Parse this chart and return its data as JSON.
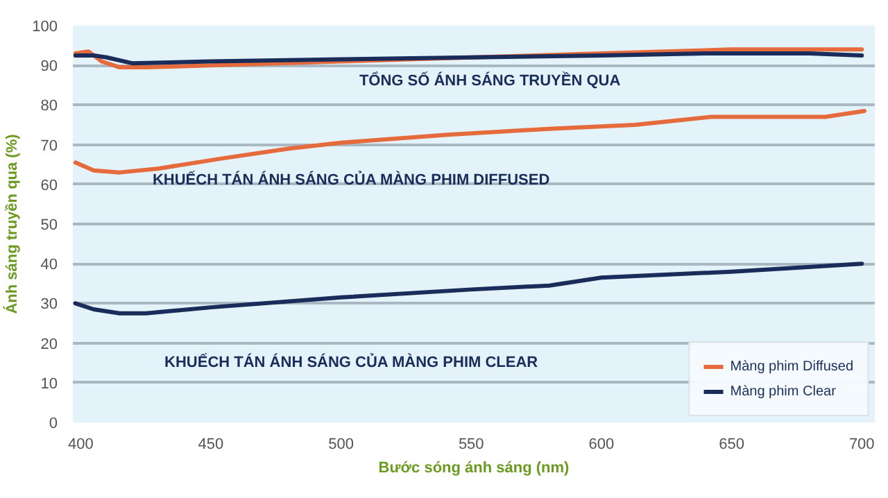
{
  "chart_data": {
    "type": "line",
    "xlabel": "Bước sóng ánh sáng (nm)",
    "ylabel": "Ánh sáng truyền qua (%)",
    "xlim": [
      397,
      705
    ],
    "xticks": [
      400,
      450,
      500,
      550,
      600,
      650,
      700
    ],
    "ylim": [
      0,
      100
    ],
    "yticks": [
      0,
      10,
      20,
      30,
      40,
      50,
      60,
      70,
      80,
      90,
      100
    ],
    "grid": "y",
    "legend": "bottom right",
    "line_style": "solid",
    "marker": "none",
    "series": [
      {
        "color": "#e56a3c",
        "x": [
          398,
          403,
          408,
          415,
          425,
          450,
          500,
          550,
          600,
          650,
          700
        ],
        "values": [
          93,
          93.5,
          91,
          89.5,
          89.5,
          90,
          91,
          92,
          93,
          94,
          94
        ]
      },
      {
        "color": "#1a2d5a",
        "x": [
          398,
          405,
          410,
          420,
          450,
          500,
          550,
          600,
          640,
          680,
          700
        ],
        "values": [
          92.5,
          92.5,
          92,
          90.5,
          91,
          91.5,
          92,
          92.5,
          93,
          93,
          92.5
        ]
      },
      {
        "name": "Màng phim Diffused",
        "color": "#e56a3c",
        "x": [
          398,
          405,
          415,
          430,
          454,
          480,
          500,
          541,
          580,
          613,
          642,
          686,
          701
        ],
        "values": [
          65.5,
          63.5,
          63,
          64,
          66.5,
          69,
          70.5,
          72.5,
          74,
          75,
          77,
          77,
          78.5
        ]
      },
      {
        "name": "Màng phim Clear",
        "color": "#1a2d5a",
        "x": [
          398,
          405,
          415,
          425,
          450,
          500,
          550,
          580,
          600,
          650,
          700
        ],
        "values": [
          30,
          28.5,
          27.5,
          27.5,
          29,
          31.5,
          33.5,
          34.5,
          36.5,
          38,
          40
        ]
      }
    ],
    "annotations": [
      "TỔNG SỐ ÁNH SÁNG TRUYỀN QUA",
      "KHUẾCH TÁN  ÁNH SÁNG CỦA MÀNG PHIM DIFFUSED",
      "KHUẾCH TÁN  ÁNH SÁNG CỦA MÀNG PHIM CLEAR"
    ]
  }
}
